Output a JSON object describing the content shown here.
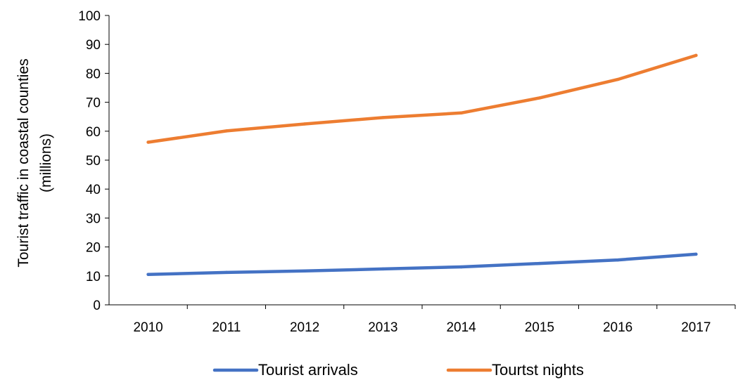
{
  "chart_data": {
    "type": "line",
    "title": "",
    "xlabel": "",
    "ylabel_lines": [
      "Tourist traffic in coastal counties",
      "(millions)"
    ],
    "x": [
      "2010",
      "2011",
      "2012",
      "2013",
      "2014",
      "2015",
      "2016",
      "2017"
    ],
    "ylim": [
      0,
      100
    ],
    "yticks": [
      0,
      10,
      20,
      30,
      40,
      50,
      60,
      70,
      80,
      90,
      100
    ],
    "grid": false,
    "legend_position": "bottom",
    "series": [
      {
        "name": "Tourist arrivals",
        "color": "#4472C4",
        "values": [
          10.5,
          11.2,
          11.7,
          12.4,
          13.1,
          14.3,
          15.5,
          17.5
        ]
      },
      {
        "name": "Tourtst nights",
        "color": "#ED7D31",
        "values": [
          56.2,
          60.1,
          62.5,
          64.7,
          66.3,
          71.5,
          77.9,
          86.2
        ]
      }
    ]
  }
}
